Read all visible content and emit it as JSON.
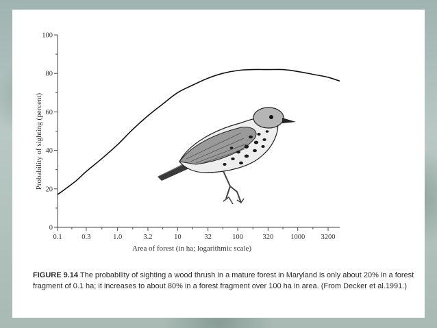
{
  "caption": {
    "figure_label": "FIGURE 9.14",
    "text": "The probability of sighting a wood thrush in a mature forest in Maryland is only about 20% in a forest fragment of 0.1 ha; it increases to about 80% in a forest fragment over 100 ha in area. (From Decker et al.1991.)"
  },
  "illustration": "wood-thrush-bird",
  "colors": {
    "curve": "#111111",
    "axis": "#444444"
  },
  "chart_data": {
    "type": "line",
    "title": "",
    "xlabel": "Area of forest (in ha; logarithmic scale)",
    "ylabel": "Probability of sighting (percent)",
    "x_scale": "log",
    "xlim": [
      0.1,
      5000
    ],
    "ylim": [
      0,
      100
    ],
    "x_ticks": [
      0.1,
      0.3,
      1.0,
      3.2,
      10,
      32,
      100,
      320,
      1000,
      3200
    ],
    "x_tick_labels": [
      "0.1",
      "0.3",
      "1.0",
      "3.2",
      "10",
      "32",
      "100",
      "320",
      "1000",
      "3200"
    ],
    "y_ticks": [
      0,
      20,
      40,
      60,
      80,
      100
    ],
    "y_tick_labels": [
      "0",
      "20",
      "40",
      "60",
      "80",
      "100"
    ],
    "grid": false,
    "series": [
      {
        "x": [
          0.1,
          0.2,
          0.3,
          0.56,
          1.0,
          1.8,
          3.2,
          5.6,
          10,
          18,
          32,
          56,
          100,
          180,
          320,
          560,
          1000,
          1800,
          3200,
          5000
        ],
        "y": [
          17,
          24,
          29,
          36,
          43,
          51,
          58,
          64,
          70,
          74,
          77.5,
          80,
          81.5,
          82,
          82,
          82,
          81,
          79.5,
          78,
          76
        ]
      }
    ]
  }
}
